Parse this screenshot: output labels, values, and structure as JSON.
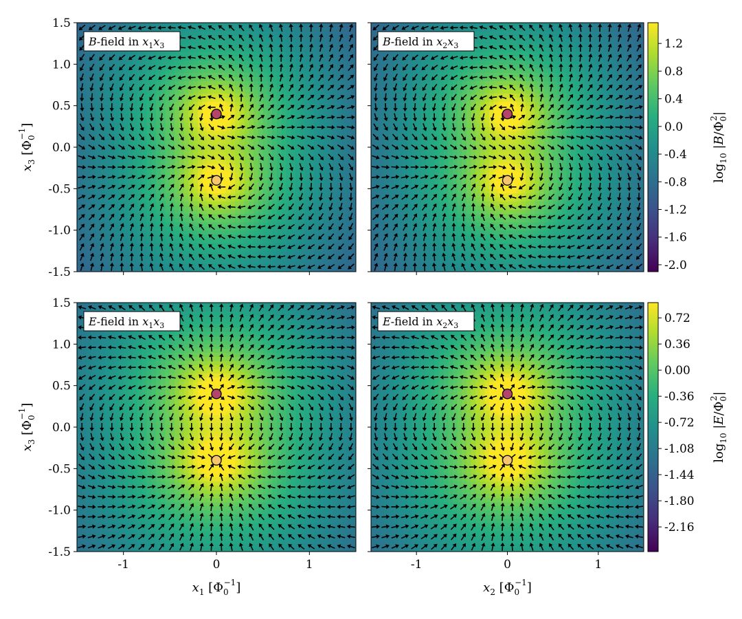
{
  "chart_data": [
    {
      "type": "heatmap",
      "panel_label": {
        "field": "B",
        "rest": "-field in ",
        "plane_a": "x",
        "sub_a": "1",
        "plane_b": "x",
        "sub_b": "3"
      },
      "xlim": [
        -1.5,
        1.5
      ],
      "ylim": [
        -1.5,
        1.5
      ],
      "xticks": [],
      "yticks": [
        "-1.5",
        "-1.0",
        "-0.5",
        "0.0",
        "0.5",
        "1.0",
        "1.5"
      ],
      "ylabel": {
        "var": "x",
        "sub": "3",
        "unit": "[Φ",
        "unit_sub": "0",
        "unit_sup": "−1",
        "close": "]"
      },
      "field_kind": "B",
      "points": [
        {
          "x": 0,
          "y": 0.4,
          "color": "#b5446a"
        },
        {
          "x": 0,
          "y": -0.4,
          "color": "#f5c66e"
        }
      ]
    },
    {
      "type": "heatmap",
      "panel_label": {
        "field": "B",
        "rest": "-field in ",
        "plane_a": "x",
        "sub_a": "2",
        "plane_b": "x",
        "sub_b": "3"
      },
      "xlim": [
        -1.5,
        1.5
      ],
      "ylim": [
        -1.5,
        1.5
      ],
      "xticks": [],
      "yticks": [],
      "field_kind": "B",
      "points": [
        {
          "x": 0,
          "y": 0.4,
          "color": "#b5446a"
        },
        {
          "x": 0,
          "y": -0.4,
          "color": "#f5c66e"
        }
      ],
      "colorbar": {
        "ticks": [
          "1.2",
          "0.8",
          "0.4",
          "0.0",
          "-0.4",
          "-0.8",
          "-1.2",
          "-1.6",
          "-2.0"
        ],
        "tick_values": [
          1.2,
          0.8,
          0.4,
          0.0,
          -0.4,
          -0.8,
          -1.2,
          -1.6,
          -2.0
        ],
        "range": [
          -2.1,
          1.5
        ],
        "label": {
          "pre": "log",
          "sub": "10",
          "var": "|B/Φ",
          "var_sub": "0",
          "var_sup": "2",
          "close": "|"
        }
      }
    },
    {
      "type": "heatmap",
      "panel_label": {
        "field": "E",
        "rest": "-field in ",
        "plane_a": "x",
        "sub_a": "1",
        "plane_b": "x",
        "sub_b": "3"
      },
      "xlim": [
        -1.5,
        1.5
      ],
      "ylim": [
        -1.5,
        1.5
      ],
      "xticks": [
        "-1",
        "0",
        "1"
      ],
      "yticks": [
        "-1.5",
        "-1.0",
        "-0.5",
        "0.0",
        "0.5",
        "1.0",
        "1.5"
      ],
      "xlabel": {
        "var": "x",
        "sub": "1",
        "unit": "[Φ",
        "unit_sub": "0",
        "unit_sup": "−1",
        "close": "]"
      },
      "ylabel": {
        "var": "x",
        "sub": "3",
        "unit": "[Φ",
        "unit_sub": "0",
        "unit_sup": "−1",
        "close": "]"
      },
      "field_kind": "E",
      "points": [
        {
          "x": 0,
          "y": 0.4,
          "color": "#b5446a"
        },
        {
          "x": 0,
          "y": -0.4,
          "color": "#f5c66e"
        }
      ]
    },
    {
      "type": "heatmap",
      "panel_label": {
        "field": "E",
        "rest": "-field in ",
        "plane_a": "x",
        "sub_a": "2",
        "plane_b": "x",
        "sub_b": "3"
      },
      "xlim": [
        -1.5,
        1.5
      ],
      "ylim": [
        -1.5,
        1.5
      ],
      "xticks": [
        "-1",
        "0",
        "1"
      ],
      "yticks": [],
      "xlabel": {
        "var": "x",
        "sub": "2",
        "unit": "[Φ",
        "unit_sub": "0",
        "unit_sup": "−1",
        "close": "]"
      },
      "field_kind": "E",
      "points": [
        {
          "x": 0,
          "y": 0.4,
          "color": "#b5446a"
        },
        {
          "x": 0,
          "y": -0.4,
          "color": "#f5c66e"
        }
      ],
      "colorbar": {
        "ticks": [
          "0.72",
          "0.36",
          "0.00",
          "-0.36",
          "-0.72",
          "-1.08",
          "-1.44",
          "-1.80",
          "-2.16"
        ],
        "tick_values": [
          0.72,
          0.36,
          0.0,
          -0.36,
          -0.72,
          -1.08,
          -1.44,
          -1.8,
          -2.16
        ],
        "range": [
          -2.5,
          0.93
        ],
        "label": {
          "pre": "log",
          "sub": "10",
          "var": "|E/Φ",
          "var_sub": "0",
          "var_sup": "2",
          "close": "|"
        }
      }
    }
  ],
  "colormap": "viridis",
  "colors": {
    "arrow": "#000000",
    "upper_charge": "#b5446a",
    "lower_charge": "#f5c66e"
  }
}
